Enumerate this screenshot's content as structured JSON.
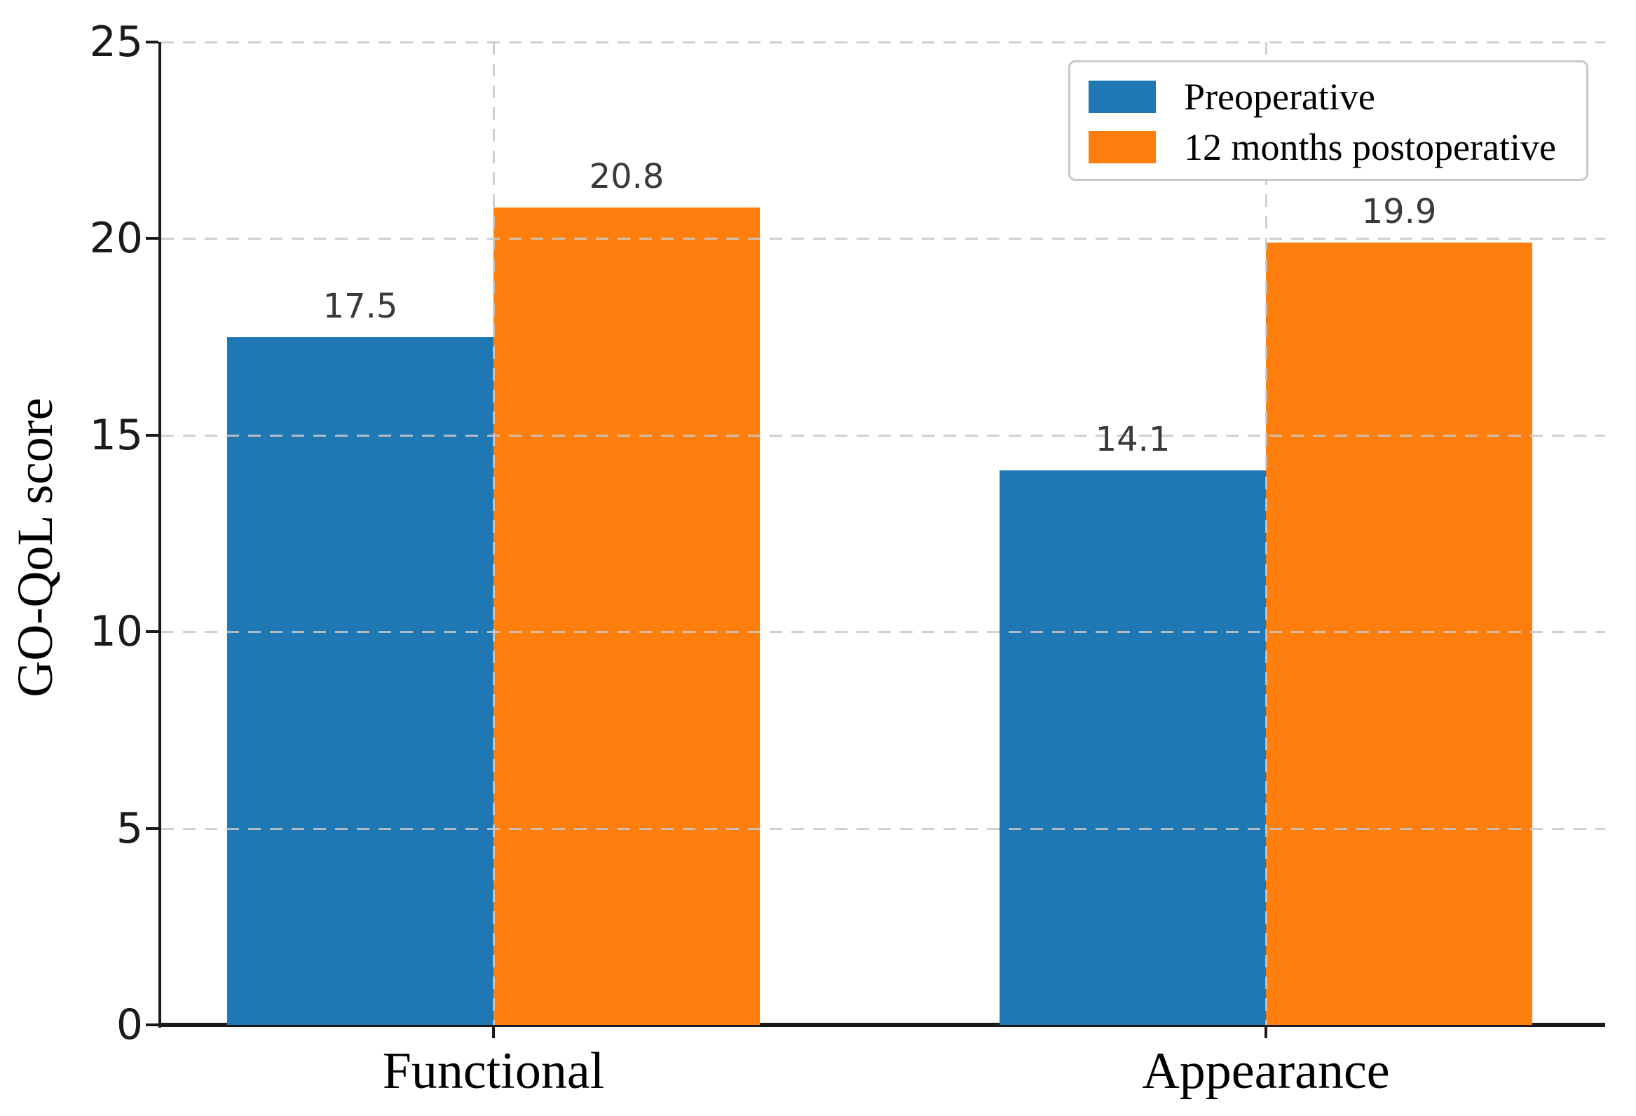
{
  "chart_data": {
    "type": "bar",
    "categories": [
      "Functional",
      "Appearance"
    ],
    "series": [
      {
        "name": "Preoperative",
        "color": "#1f77b4",
        "values": [
          17.5,
          14.1
        ]
      },
      {
        "name": "12 months postoperative",
        "color": "#ff7f0e",
        "values": [
          20.8,
          19.9
        ]
      }
    ],
    "value_labels": [
      "17.5",
      "20.8",
      "14.1",
      "19.9"
    ],
    "title": "",
    "xlabel": "",
    "ylabel": "GO-QoL score",
    "ylim": [
      0,
      25
    ],
    "yticks": [
      0,
      5,
      10,
      15,
      20,
      25
    ],
    "grid": "dashed light-gray horizontal lines at yticks and vertical lines at category centers, drawn over bars",
    "legend_position": "upper right",
    "colors": {
      "grid": "#c9c9c9",
      "spine": "#1a1a1a",
      "value_label_text": "#3a3a3a",
      "tick_label_text": "#1a1a1a",
      "category_text": "#000000",
      "background": "#ffffff"
    }
  }
}
